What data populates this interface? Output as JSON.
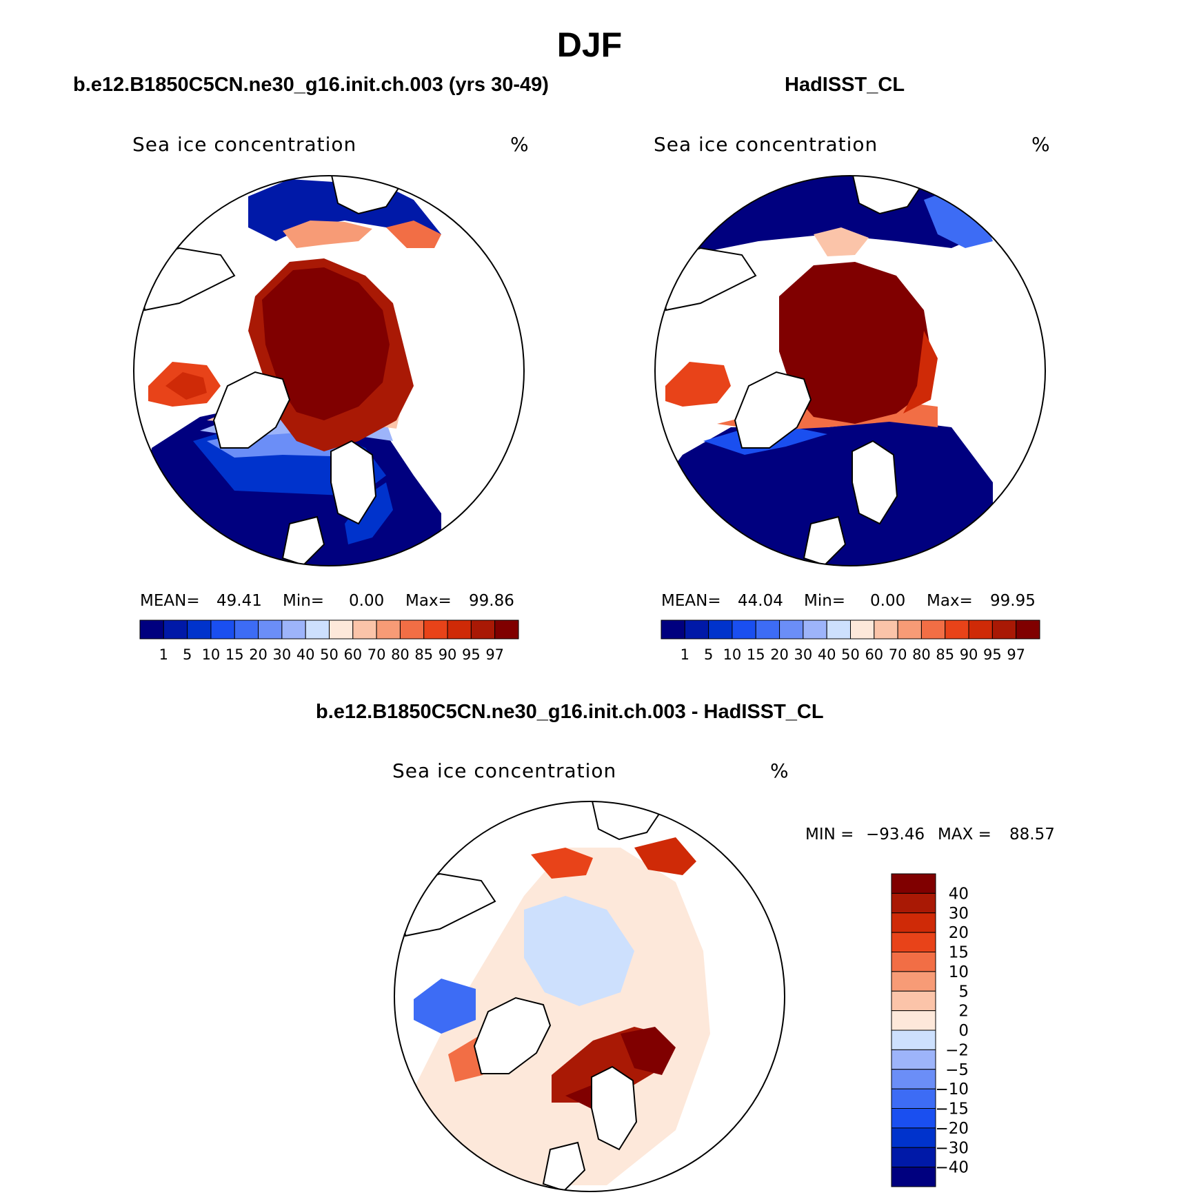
{
  "figure": {
    "title": "DJF",
    "colors": {
      "levels_palette": [
        "#00007f",
        "#0019a8",
        "#0033cc",
        "#1a4ff0",
        "#3d6cf5",
        "#6b8ef7",
        "#9db4fa",
        "#cde0fd",
        "#fde8da",
        "#fbc4a9",
        "#f79b76",
        "#f26e45",
        "#e84319",
        "#cf2a07",
        "#a91905",
        "#800000"
      ],
      "land": "#ffffff",
      "coast": "#000000"
    }
  },
  "chart_data": [
    {
      "type": "heatmap",
      "projection": "north-polar-stereographic",
      "panel_title": "b.e12.B1850C5CN.ne30_g16.init.ch.003 (yrs 30-49)",
      "variable": "Sea ice concentration",
      "units": "%",
      "stats": {
        "mean_label": "MEAN=",
        "mean": "49.41",
        "min_label": "Min=",
        "min": "0.00",
        "max_label": "Max=",
        "max": "99.86"
      },
      "colorbar": {
        "orientation": "horizontal",
        "levels": [
          "1",
          "5",
          "10",
          "15",
          "20",
          "30",
          "40",
          "50",
          "60",
          "70",
          "80",
          "85",
          "90",
          "95",
          "97"
        ]
      }
    },
    {
      "type": "heatmap",
      "projection": "north-polar-stereographic",
      "panel_title": "HadISST_CL",
      "variable": "Sea ice concentration",
      "units": "%",
      "stats": {
        "mean_label": "MEAN=",
        "mean": "44.04",
        "min_label": "Min=",
        "min": "0.00",
        "max_label": "Max=",
        "max": "99.95"
      },
      "colorbar": {
        "orientation": "horizontal",
        "levels": [
          "1",
          "5",
          "10",
          "15",
          "20",
          "30",
          "40",
          "50",
          "60",
          "70",
          "80",
          "85",
          "90",
          "95",
          "97"
        ]
      }
    },
    {
      "type": "heatmap",
      "projection": "north-polar-stereographic",
      "panel_title": "b.e12.B1850C5CN.ne30_g16.init.ch.003 - HadISST_CL",
      "variable": "Sea ice concentration",
      "units": "%",
      "stats": {
        "min_label": "MIN =",
        "min": "−93.46",
        "max_label": "MAX =",
        "max": "88.57"
      },
      "colorbar": {
        "orientation": "vertical",
        "levels": [
          "40",
          "30",
          "20",
          "15",
          "10",
          "5",
          "2",
          "0",
          "−2",
          "−5",
          "−10",
          "−15",
          "−20",
          "−30",
          "−40"
        ]
      }
    }
  ]
}
